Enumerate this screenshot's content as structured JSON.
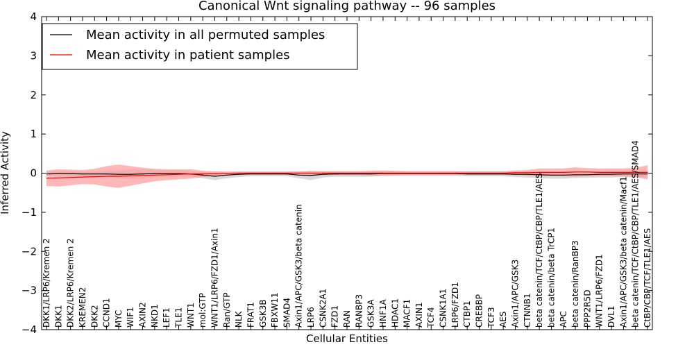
{
  "chart_data": {
    "type": "line",
    "title": "Canonical Wnt signaling pathway -- 96 samples",
    "xlabel": "Cellular Entities",
    "ylabel": "Inferred Activity",
    "ylim": [
      -4,
      4
    ],
    "yticks": [
      4,
      3,
      2,
      1,
      0,
      -1,
      -2,
      -3,
      -4
    ],
    "ytick_labels": [
      "4",
      "3",
      "2",
      "1",
      "0",
      "−1",
      "−2",
      "−3",
      "−4"
    ],
    "legend_position": "top-left",
    "categories": [
      "DKK1/LRP6/Kremen 2",
      "DKK1",
      "DKK2/LRP6/Kremen 2",
      "KREMEN2",
      "DKK2",
      "CCND1",
      "MYC",
      "WIF1",
      "AXIN2",
      "NKD1",
      "LEF1",
      "TLE1",
      "WNT1",
      "mol:GTP",
      "WNT1/LRP6/FZD1/Axin1",
      "Ran/GTP",
      "NLK",
      "FRAT1",
      "GSK3B",
      "FBXW11",
      "SMAD4",
      "Axin1/APC/GSK3/beta catenin",
      "LRP6",
      "CSNK2A1",
      "FZD1",
      "RAN",
      "RANBP3",
      "GSK3A",
      "HNF1A",
      "HDAC1",
      "MACF1",
      "AXIN1",
      "TCF4",
      "CSNK1A1",
      "LRP6/FZD1",
      "CTBP1",
      "CREBBP",
      "TCF3",
      "AES",
      "Axin1/APC/GSK3",
      "CTNNB1",
      "beta catenin/TCF/CtBP/CBP/TLE1/AES",
      "beta catenin/beta TrCP1",
      "APC",
      "beta catenin/RanBP3",
      "PPP2R5D",
      "WNT1/LRP6/FZD1",
      "DVL1",
      "Axin1/APC/GSK3/beta catenin/Macf1",
      "beta catenin/TCF/CtBP/CBP/TLE1/AES/SMAD4",
      "CtBP/CBP/TCF/TLE1/AES"
    ],
    "series": [
      {
        "name": "Mean activity in all permuted samples",
        "color": "#000000",
        "band_color": "#cccccc",
        "values": [
          -0.02,
          -0.01,
          -0.01,
          -0.02,
          -0.02,
          -0.02,
          -0.03,
          -0.03,
          -0.02,
          -0.01,
          -0.01,
          -0.01,
          -0.02,
          -0.05,
          -0.08,
          -0.05,
          -0.03,
          -0.02,
          -0.02,
          -0.02,
          -0.02,
          -0.05,
          -0.06,
          -0.03,
          -0.02,
          -0.02,
          -0.02,
          -0.02,
          -0.01,
          -0.01,
          -0.01,
          -0.01,
          -0.01,
          -0.01,
          -0.01,
          -0.02,
          -0.02,
          -0.02,
          -0.02,
          -0.03,
          -0.03,
          -0.04,
          -0.05,
          -0.05,
          -0.04,
          -0.04,
          -0.03,
          -0.03,
          -0.02,
          -0.02,
          -0.02
        ],
        "spread": [
          0.05,
          0.06,
          0.06,
          0.06,
          0.06,
          0.07,
          0.1,
          0.12,
          0.12,
          0.09,
          0.08,
          0.08,
          0.07,
          0.08,
          0.1,
          0.08,
          0.07,
          0.06,
          0.06,
          0.06,
          0.06,
          0.08,
          0.12,
          0.08,
          0.07,
          0.07,
          0.07,
          0.07,
          0.06,
          0.06,
          0.06,
          0.06,
          0.06,
          0.06,
          0.06,
          0.06,
          0.06,
          0.06,
          0.06,
          0.07,
          0.08,
          0.09,
          0.09,
          0.09,
          0.08,
          0.08,
          0.08,
          0.08,
          0.08,
          0.09,
          0.1
        ]
      },
      {
        "name": "Mean activity in patient samples",
        "color": "#ff0000",
        "band_color": "#ff9999",
        "values": [
          -0.13,
          -0.12,
          -0.11,
          -0.1,
          -0.09,
          -0.08,
          -0.08,
          -0.07,
          -0.06,
          -0.05,
          -0.04,
          -0.03,
          -0.02,
          -0.02,
          -0.01,
          -0.01,
          0.0,
          0.0,
          0.0,
          0.0,
          0.0,
          0.0,
          0.0,
          0.0,
          0.0,
          0.0,
          0.0,
          0.0,
          0.0,
          0.0,
          0.0,
          0.0,
          0.0,
          0.0,
          0.0,
          0.0,
          0.0,
          0.0,
          0.0,
          0.01,
          0.01,
          0.02,
          0.02,
          0.02,
          0.03,
          0.03,
          0.02,
          0.02,
          0.02,
          0.02,
          0.02
        ],
        "spread": [
          0.2,
          0.22,
          0.2,
          0.18,
          0.2,
          0.26,
          0.3,
          0.25,
          0.2,
          0.16,
          0.14,
          0.13,
          0.12,
          0.08,
          0.06,
          0.05,
          0.04,
          0.04,
          0.04,
          0.04,
          0.04,
          0.05,
          0.05,
          0.05,
          0.05,
          0.05,
          0.05,
          0.06,
          0.07,
          0.06,
          0.05,
          0.05,
          0.05,
          0.05,
          0.05,
          0.05,
          0.05,
          0.05,
          0.05,
          0.06,
          0.07,
          0.1,
          0.1,
          0.1,
          0.12,
          0.1,
          0.1,
          0.1,
          0.1,
          0.12,
          0.18
        ]
      }
    ]
  }
}
